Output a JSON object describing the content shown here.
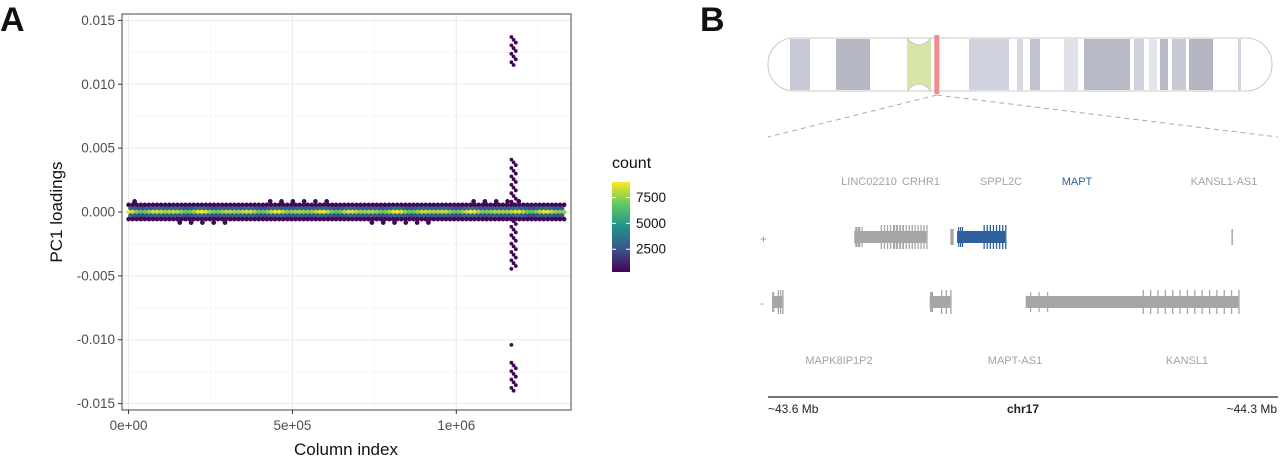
{
  "panels": {
    "a_label": "A",
    "b_label": "B"
  },
  "chart_data": [
    {
      "panel": "A",
      "type": "heatmap",
      "subtype": "hexbin",
      "title": "",
      "xlabel": "Column index",
      "ylabel": "PC1 loadings",
      "xlim": [
        -20000,
        1350000
      ],
      "ylim": [
        -0.0155,
        0.0155
      ],
      "x_ticks": [
        0,
        500000,
        1000000
      ],
      "x_tick_labels": [
        "0e+00",
        "5e+05",
        "1e+06"
      ],
      "y_ticks": [
        -0.015,
        -0.01,
        -0.005,
        0.0,
        0.005,
        0.01,
        0.015
      ],
      "y_tick_labels": [
        "-0.015",
        "-0.010",
        "-0.005",
        "0.000",
        "0.005",
        "0.010",
        "0.015"
      ],
      "grid": true,
      "band": {
        "x_range": [
          0,
          1330000
        ],
        "y_range": [
          -0.00045,
          0.00045
        ],
        "max_count": 9000
      },
      "spike": {
        "x": 1175000,
        "clusters": [
          {
            "y_range": [
              0.0115,
              0.0137
            ]
          },
          {
            "y_range": [
              0.0005,
              0.0041
            ]
          },
          {
            "y_range": [
              -0.0045,
              -0.0005
            ]
          },
          {
            "y_range": [
              -0.0142,
              -0.0118
            ]
          },
          {
            "y_range": [
              -0.0106,
              -0.0104
            ]
          }
        ]
      },
      "legend": {
        "title": "count",
        "position": "right",
        "breaks": [
          2500,
          5000,
          7500
        ],
        "break_labels": [
          "2500",
          "5000",
          "7500"
        ],
        "range": [
          300,
          9000
        ],
        "colors": [
          "#440154",
          "#3b528b",
          "#21918c",
          "#5ec962",
          "#fde725"
        ]
      }
    },
    {
      "panel": "B",
      "type": "genome_track",
      "chromosome": "chr17",
      "start_label": "~43.6 Mb",
      "end_label": "~44.3 Mb",
      "region_range_mb": [
        43.6,
        44.3
      ],
      "ideogram_highlight_fraction": 0.335,
      "strand_labels": {
        "plus": "+",
        "minus": "-"
      },
      "genes_plus": [
        {
          "name": "LINC02210",
          "start": 43.72,
          "end": 43.79
        },
        {
          "name": "CRHR1",
          "start": 43.72,
          "end": 43.825
        },
        {
          "name": "SPPL2C",
          "start": 43.86,
          "end": 43.865
        },
        {
          "name": "MAPT",
          "start": 43.87,
          "end": 43.94,
          "highlight": true
        },
        {
          "name": "KANSL1-AS1",
          "start": 44.27,
          "end": 44.272
        }
      ],
      "genes_minus": [
        {
          "name": "MAPK8IP1P2",
          "start": 43.6,
          "end": 43.615
        },
        {
          "name": "MAPT-AS1",
          "start": 43.83,
          "end": 43.86
        },
        {
          "name": "KANSL1",
          "start": 43.97,
          "end": 44.28
        }
      ],
      "colors": {
        "gene": "#a6a6a6",
        "highlight": "#2e5f9e"
      }
    }
  ]
}
